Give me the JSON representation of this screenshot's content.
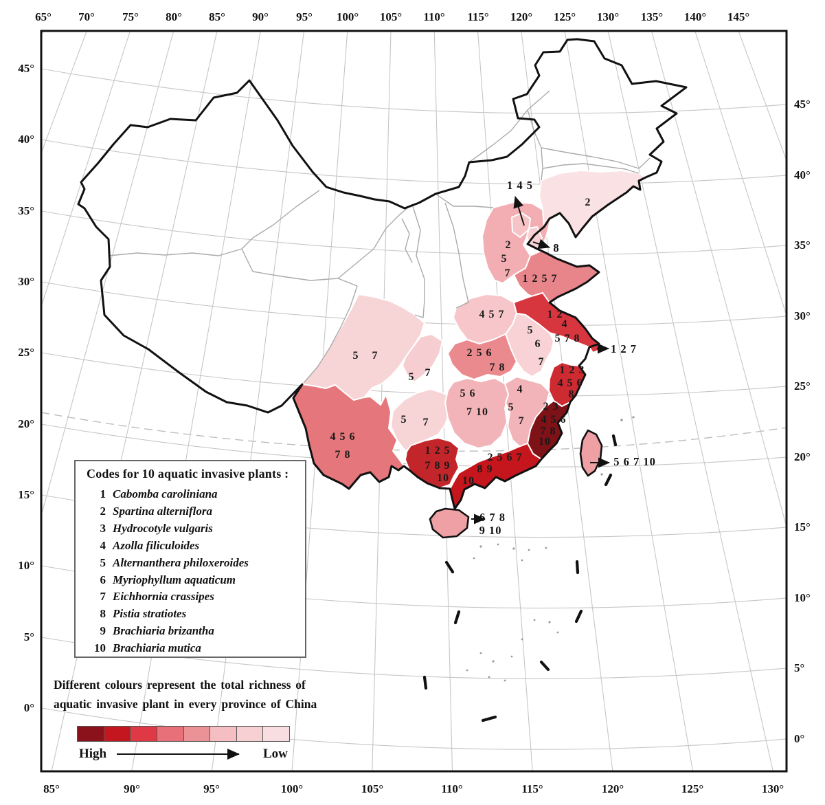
{
  "figure": {
    "axes": {
      "top": [
        "65°",
        "70°",
        "75°",
        "80°",
        "85°",
        "90°",
        "95°",
        "100°",
        "105°",
        "110°",
        "115°",
        "120°",
        "125°",
        "130°",
        "135°",
        "140°",
        "145°"
      ],
      "bottom": [
        "85°",
        "90°",
        "95°",
        "100°",
        "105°",
        "110°",
        "115°",
        "120°",
        "125°",
        "130°"
      ],
      "left": [
        "45°",
        "40°",
        "35°",
        "30°",
        "25°",
        "20°",
        "15°",
        "10°",
        "5°",
        "0°"
      ],
      "right": [
        "45°",
        "40°",
        "35°",
        "30°",
        "25°",
        "20°",
        "15°",
        "10°",
        "5°",
        "0°"
      ]
    },
    "legend": {
      "title": "Codes for 10 aquatic invasive plants :",
      "items": [
        {
          "code": "1",
          "name": "Cabomba caroliniana"
        },
        {
          "code": "2",
          "name": "Spartina alterniflora"
        },
        {
          "code": "3",
          "name": "Hydrocotyle vulgaris"
        },
        {
          "code": "4",
          "name": "Azolla filiculoides"
        },
        {
          "code": "5",
          "name": "Alternanthera philoxeroides"
        },
        {
          "code": "6",
          "name": "Myriophyllum aquaticum"
        },
        {
          "code": "7",
          "name": "Eichhornia crassipes"
        },
        {
          "code": "8",
          "name": "Pistia stratiotes"
        },
        {
          "code": "9",
          "name": "Brachiaria brizantha"
        },
        {
          "code": "10",
          "name": "Brachiaria mutica"
        }
      ]
    },
    "caption": [
      "Different colours represent the total richness of",
      "aquatic invasive plant in every province of China"
    ],
    "colour_scale": {
      "high": "High",
      "low": "Low",
      "colors": [
        "#8b121a",
        "#c4161e",
        "#de3944",
        "#e87078",
        "#eb9297",
        "#f4bec2",
        "#f7d0d3",
        "#f9dee1"
      ]
    },
    "provinces": {
      "liaoning": {
        "color": "#fae2e4",
        "codes": [
          "2"
        ]
      },
      "hebei": {
        "color": "#f2aeb2",
        "codes": [
          "2",
          "5",
          "7"
        ]
      },
      "shandong": {
        "color": "#e8858a",
        "codes": [
          "1 2 5 7"
        ]
      },
      "henan": {
        "color": "#f6c6ca",
        "codes": [
          "4 5 7"
        ]
      },
      "jiangsu": {
        "color": "#d8363e",
        "codes": [
          "1 2",
          "4",
          "5 7 8"
        ]
      },
      "anhui": {
        "color": "#f8d2d5",
        "codes": [
          "5",
          "6",
          "7"
        ]
      },
      "hubei": {
        "color": "#ea8a8f",
        "codes": [
          "2 5 6",
          "7 8"
        ]
      },
      "zhejiang": {
        "color": "#ce2a32",
        "codes": [
          "1 2 3",
          "4 5 6",
          "8"
        ]
      },
      "hunan": {
        "color": "#f2b4b8",
        "codes": [
          "5 6",
          "7 10"
        ]
      },
      "jiangxi": {
        "color": "#f2b4b8",
        "codes": [
          "4",
          "5",
          "7"
        ]
      },
      "fujian": {
        "color": "#7e1217",
        "codes": [
          "2 3",
          "4 5 6",
          "7 8",
          "10"
        ]
      },
      "guangdong": {
        "color": "#c4161c",
        "codes": [
          "2 5 6 7",
          "8 9",
          "10"
        ]
      },
      "guangxi": {
        "color": "#c2262b",
        "codes": [
          "1 2 5",
          "7 8 9",
          "10"
        ]
      },
      "yunnan": {
        "color": "#e5767b",
        "codes": [
          "4 5 6",
          "7 8"
        ]
      },
      "sichuan": {
        "color": "#f7d4d6",
        "codes": [
          "5",
          "7"
        ]
      },
      "chongqing": {
        "color": "#f6cdd0",
        "codes": [
          "5",
          "7"
        ]
      },
      "guizhou": {
        "color": "#f7d4d6",
        "codes": [
          "5",
          "7"
        ]
      },
      "beijing": {
        "color": "#f6c3c7",
        "codes": []
      },
      "tianjin": {
        "color": "#f8d0d3",
        "codes": []
      },
      "shanghai": {
        "color": "#d8363e",
        "codes": []
      },
      "taiwan": {
        "color": "#efa0a5",
        "codes": []
      },
      "hainan": {
        "color": "#efa0a5",
        "codes": []
      }
    },
    "callouts": {
      "beijing": [
        "1 4 5"
      ],
      "tianjin": [
        "8"
      ],
      "shanghai": [
        "1 2 7"
      ],
      "taiwan": [
        "5 6 7 10"
      ],
      "hainan": [
        "6 7 8",
        "9 10"
      ]
    }
  }
}
